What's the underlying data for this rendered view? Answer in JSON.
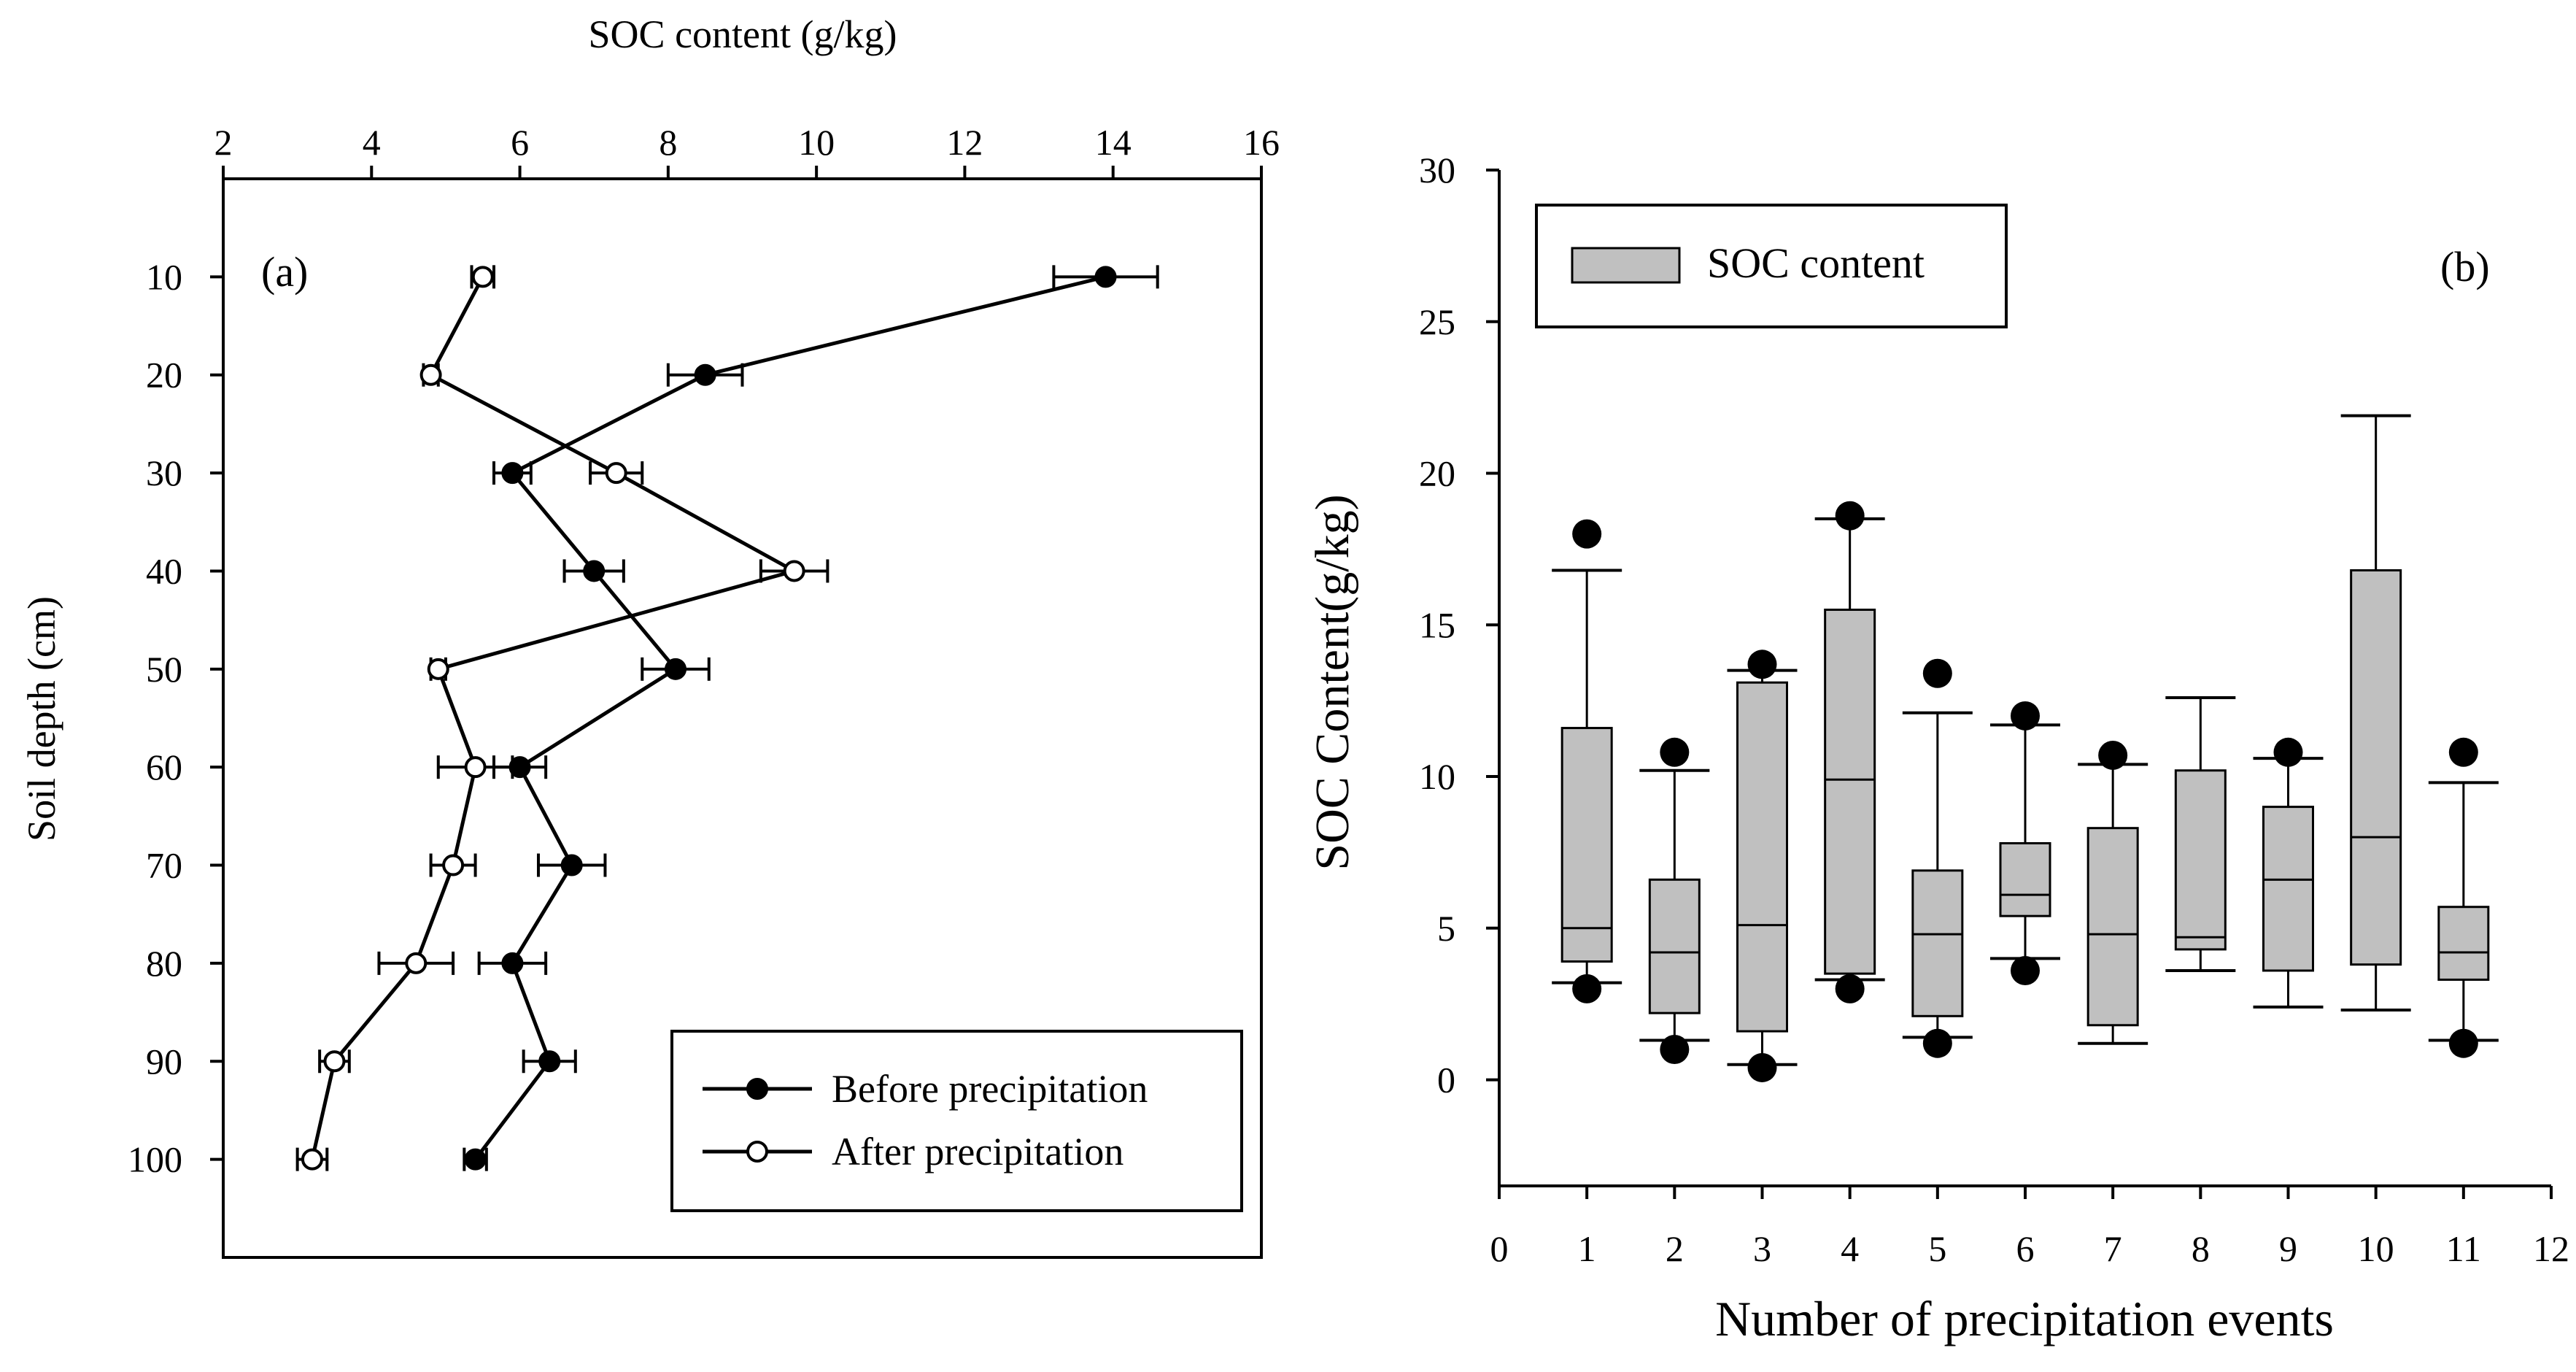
{
  "chart_data": [
    {
      "type": "line",
      "panel_label": "(a)",
      "title": "",
      "xlabel": "SOC content (g/kg)",
      "ylabel": "Soil depth (cm)",
      "xlim": [
        2,
        16
      ],
      "ylim": [
        110,
        0
      ],
      "x_ticks": [
        2,
        4,
        6,
        8,
        10,
        12,
        14,
        16
      ],
      "y_ticks": [
        10,
        20,
        30,
        40,
        50,
        60,
        70,
        80,
        90,
        100
      ],
      "depths": [
        10,
        20,
        30,
        40,
        50,
        60,
        70,
        80,
        90,
        100
      ],
      "series": [
        {
          "name": "Before precipitation",
          "marker": "filled",
          "values": [
            13.9,
            8.5,
            5.9,
            7.0,
            8.1,
            6.0,
            6.7,
            5.9,
            6.4,
            5.4
          ],
          "errors": [
            0.7,
            0.5,
            0.25,
            0.4,
            0.45,
            0.35,
            0.45,
            0.45,
            0.35,
            0.15
          ]
        },
        {
          "name": "After precipitation",
          "marker": "open",
          "values": [
            5.5,
            4.8,
            7.3,
            9.7,
            4.9,
            5.4,
            5.1,
            4.6,
            3.5,
            3.2
          ],
          "errors": [
            0.15,
            0.1,
            0.35,
            0.45,
            0.1,
            0.5,
            0.3,
            0.5,
            0.2,
            0.2
          ]
        }
      ],
      "legend_location": "lower-right"
    },
    {
      "type": "box",
      "panel_label": "(b)",
      "title": "",
      "xlabel": "Number of precipitation events",
      "ylabel": "SOC Content(g/kg)",
      "xlim": [
        0,
        12
      ],
      "ylim": [
        -3.5,
        30
      ],
      "x_ticks": [
        0,
        1,
        2,
        3,
        4,
        5,
        6,
        7,
        8,
        9,
        10,
        11,
        12
      ],
      "y_ticks": [
        0,
        5,
        10,
        15,
        20,
        25,
        30
      ],
      "legend_label": "SOC content",
      "legend_location": "top-left",
      "boxes": [
        {
          "x": 1,
          "whisker_low": 3.2,
          "q1": 3.9,
          "median": 5.0,
          "q3": 11.6,
          "whisker_high": 16.8,
          "outliers": [
            18.0,
            3.0
          ]
        },
        {
          "x": 2,
          "whisker_low": 1.3,
          "q1": 2.2,
          "median": 4.2,
          "q3": 6.6,
          "whisker_high": 10.2,
          "outliers": [
            10.8,
            1.0
          ]
        },
        {
          "x": 3,
          "whisker_low": 0.5,
          "q1": 1.6,
          "median": 5.1,
          "q3": 13.1,
          "whisker_high": 13.5,
          "outliers": [
            13.7,
            0.4
          ]
        },
        {
          "x": 4,
          "whisker_low": 3.3,
          "q1": 3.5,
          "median": 9.9,
          "q3": 15.5,
          "whisker_high": 18.5,
          "outliers": [
            18.6,
            3.0
          ]
        },
        {
          "x": 5,
          "whisker_low": 1.4,
          "q1": 2.1,
          "median": 4.8,
          "q3": 6.9,
          "whisker_high": 12.1,
          "outliers": [
            13.4,
            1.2
          ]
        },
        {
          "x": 6,
          "whisker_low": 4.0,
          "q1": 5.4,
          "median": 6.1,
          "q3": 7.8,
          "whisker_high": 11.7,
          "outliers": [
            12.0,
            3.6
          ]
        },
        {
          "x": 7,
          "whisker_low": 1.2,
          "q1": 1.8,
          "median": 4.8,
          "q3": 8.3,
          "whisker_high": 10.4,
          "outliers": [
            10.7
          ]
        },
        {
          "x": 8,
          "whisker_low": 3.6,
          "q1": 4.3,
          "median": 4.7,
          "q3": 10.2,
          "whisker_high": 12.6,
          "outliers": []
        },
        {
          "x": 9,
          "whisker_low": 2.4,
          "q1": 3.6,
          "median": 6.6,
          "q3": 9.0,
          "whisker_high": 10.6,
          "outliers": [
            10.8
          ]
        },
        {
          "x": 10,
          "whisker_low": 2.3,
          "q1": 3.8,
          "median": 8.0,
          "q3": 16.8,
          "whisker_high": 21.9,
          "outliers": []
        },
        {
          "x": 11,
          "whisker_low": 1.3,
          "q1": 3.3,
          "median": 4.2,
          "q3": 5.7,
          "whisker_high": 9.8,
          "outliers": [
            10.8,
            1.2
          ]
        }
      ]
    }
  ]
}
